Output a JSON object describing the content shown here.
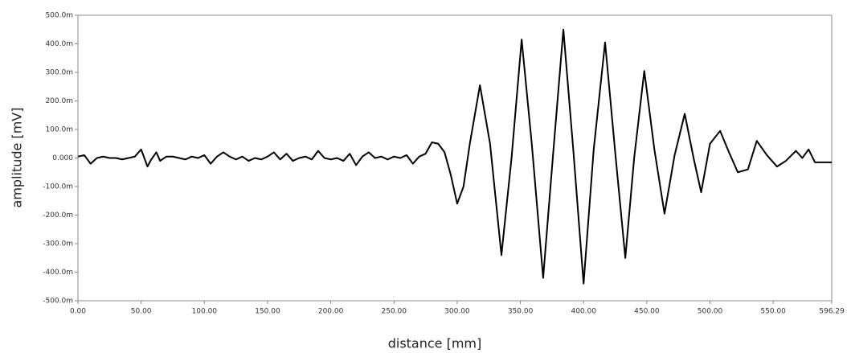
{
  "chart_data": {
    "type": "line",
    "x_label": "distance [mm]",
    "y_label": "amplitude [mV]",
    "grid": false,
    "color": "#000000",
    "xlim": [
      0,
      596.29
    ],
    "ylim": [
      -500,
      500
    ],
    "xticks": [
      {
        "value": 0,
        "label": "0.00"
      },
      {
        "value": 50,
        "label": "50.00"
      },
      {
        "value": 100,
        "label": "100.00"
      },
      {
        "value": 150,
        "label": "150.00"
      },
      {
        "value": 200,
        "label": "200.00"
      },
      {
        "value": 250,
        "label": "250.00"
      },
      {
        "value": 300,
        "label": "300.00"
      },
      {
        "value": 350,
        "label": "350.00"
      },
      {
        "value": 400,
        "label": "400.00"
      },
      {
        "value": 450,
        "label": "450.00"
      },
      {
        "value": 500,
        "label": "500.00"
      },
      {
        "value": 550,
        "label": "550.00"
      },
      {
        "value": 596.29,
        "label": "596.29"
      }
    ],
    "yticks": [
      {
        "value": -500,
        "label": "-500.0m"
      },
      {
        "value": -400,
        "label": "-400.0m"
      },
      {
        "value": -300,
        "label": "-300.0m"
      },
      {
        "value": -200,
        "label": "-200.0m"
      },
      {
        "value": -100,
        "label": "-100.0m"
      },
      {
        "value": 0,
        "label": "0.000"
      },
      {
        "value": 100,
        "label": "100.0m"
      },
      {
        "value": 200,
        "label": "200.0m"
      },
      {
        "value": 300,
        "label": "300.0m"
      },
      {
        "value": 400,
        "label": "400.0m"
      },
      {
        "value": 500,
        "label": "500.0m"
      }
    ],
    "x": [
      0,
      5,
      10,
      15,
      20,
      25,
      30,
      35,
      40,
      45,
      50,
      55,
      58,
      62,
      65,
      70,
      75,
      80,
      85,
      90,
      95,
      100,
      105,
      110,
      115,
      120,
      125,
      130,
      135,
      140,
      145,
      150,
      155,
      160,
      165,
      170,
      175,
      180,
      185,
      190,
      195,
      200,
      205,
      210,
      215,
      220,
      225,
      230,
      235,
      240,
      245,
      250,
      255,
      260,
      265,
      270,
      275,
      280,
      285,
      290,
      295,
      300,
      305,
      310,
      318,
      326,
      335,
      343,
      351,
      359,
      368,
      376,
      384,
      392,
      400,
      408,
      417,
      425,
      433,
      440,
      448,
      456,
      464,
      472,
      480,
      487,
      493,
      500,
      508,
      515,
      522,
      530,
      537,
      545,
      553,
      560,
      568,
      573,
      578,
      583,
      588,
      596.29
    ],
    "values": [
      5,
      10,
      -20,
      0,
      5,
      0,
      0,
      -5,
      0,
      5,
      30,
      -30,
      -5,
      20,
      -10,
      5,
      5,
      0,
      -5,
      5,
      0,
      10,
      -20,
      5,
      20,
      5,
      -5,
      5,
      -10,
      0,
      -5,
      5,
      20,
      -5,
      15,
      -10,
      0,
      5,
      -5,
      25,
      0,
      -5,
      0,
      -10,
      15,
      -25,
      5,
      20,
      0,
      5,
      -5,
      5,
      0,
      10,
      -20,
      5,
      15,
      55,
      50,
      20,
      -60,
      -160,
      -100,
      50,
      255,
      50,
      -340,
      0,
      415,
      50,
      -420,
      20,
      450,
      20,
      -440,
      30,
      405,
      20,
      -350,
      0,
      305,
      30,
      -195,
      10,
      155,
      0,
      -120,
      50,
      95,
      20,
      -50,
      -40,
      60,
      10,
      -30,
      -10,
      25,
      0,
      30,
      -15,
      -15,
      -15
    ]
  }
}
